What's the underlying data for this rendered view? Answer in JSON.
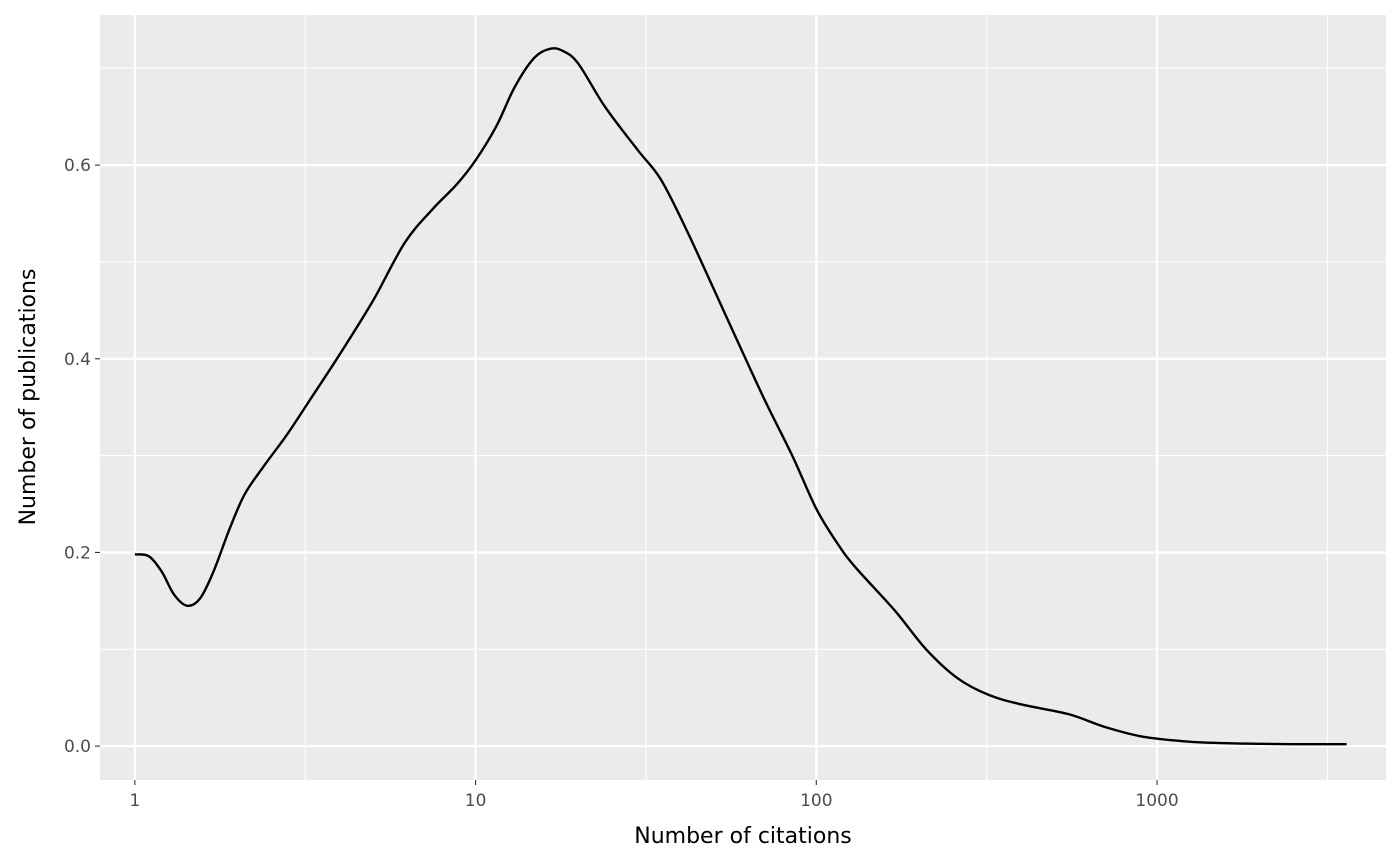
{
  "chart_data": {
    "type": "line",
    "xlabel": "Number of citations",
    "ylabel": "Number of publications",
    "x_scale": "log10",
    "xlim": [
      0.79,
      4700
    ],
    "ylim": [
      -0.035,
      0.755
    ],
    "x_ticks": [
      1,
      10,
      100,
      1000
    ],
    "x_tick_labels": [
      "1",
      "10",
      "100",
      "1000"
    ],
    "y_ticks": [
      0.0,
      0.2,
      0.4,
      0.6
    ],
    "y_tick_labels": [
      "0.0",
      "0.2",
      "0.4",
      "0.6"
    ],
    "grid": true,
    "background": "#ebebeb",
    "grid_color": "#ffffff",
    "line_color": "#000000",
    "series": [
      {
        "points": [
          [
            1.0,
            0.198
          ],
          [
            1.1,
            0.196
          ],
          [
            1.2,
            0.18
          ],
          [
            1.3,
            0.157
          ],
          [
            1.42,
            0.145
          ],
          [
            1.55,
            0.152
          ],
          [
            1.7,
            0.18
          ],
          [
            1.9,
            0.225
          ],
          [
            2.1,
            0.26
          ],
          [
            2.4,
            0.29
          ],
          [
            2.8,
            0.322
          ],
          [
            3.3,
            0.36
          ],
          [
            4.0,
            0.405
          ],
          [
            5.0,
            0.46
          ],
          [
            6.2,
            0.52
          ],
          [
            7.5,
            0.555
          ],
          [
            8.8,
            0.58
          ],
          [
            10.0,
            0.605
          ],
          [
            11.5,
            0.64
          ],
          [
            13.0,
            0.68
          ],
          [
            14.8,
            0.71
          ],
          [
            16.5,
            0.72
          ],
          [
            18.0,
            0.718
          ],
          [
            20.0,
            0.705
          ],
          [
            24.0,
            0.66
          ],
          [
            30.0,
            0.615
          ],
          [
            35.0,
            0.585
          ],
          [
            42.0,
            0.53
          ],
          [
            55.0,
            0.44
          ],
          [
            70.0,
            0.36
          ],
          [
            85.0,
            0.3
          ],
          [
            100.0,
            0.245
          ],
          [
            115.0,
            0.21
          ],
          [
            130.0,
            0.185
          ],
          [
            170.0,
            0.14
          ],
          [
            210.0,
            0.1
          ],
          [
            260.0,
            0.07
          ],
          [
            320.0,
            0.053
          ],
          [
            400.0,
            0.043
          ],
          [
            550.0,
            0.033
          ],
          [
            700.0,
            0.02
          ],
          [
            900.0,
            0.01
          ],
          [
            1200.0,
            0.005
          ],
          [
            1600.0,
            0.003
          ],
          [
            2500.0,
            0.002
          ],
          [
            3600.0,
            0.002
          ]
        ]
      }
    ]
  }
}
